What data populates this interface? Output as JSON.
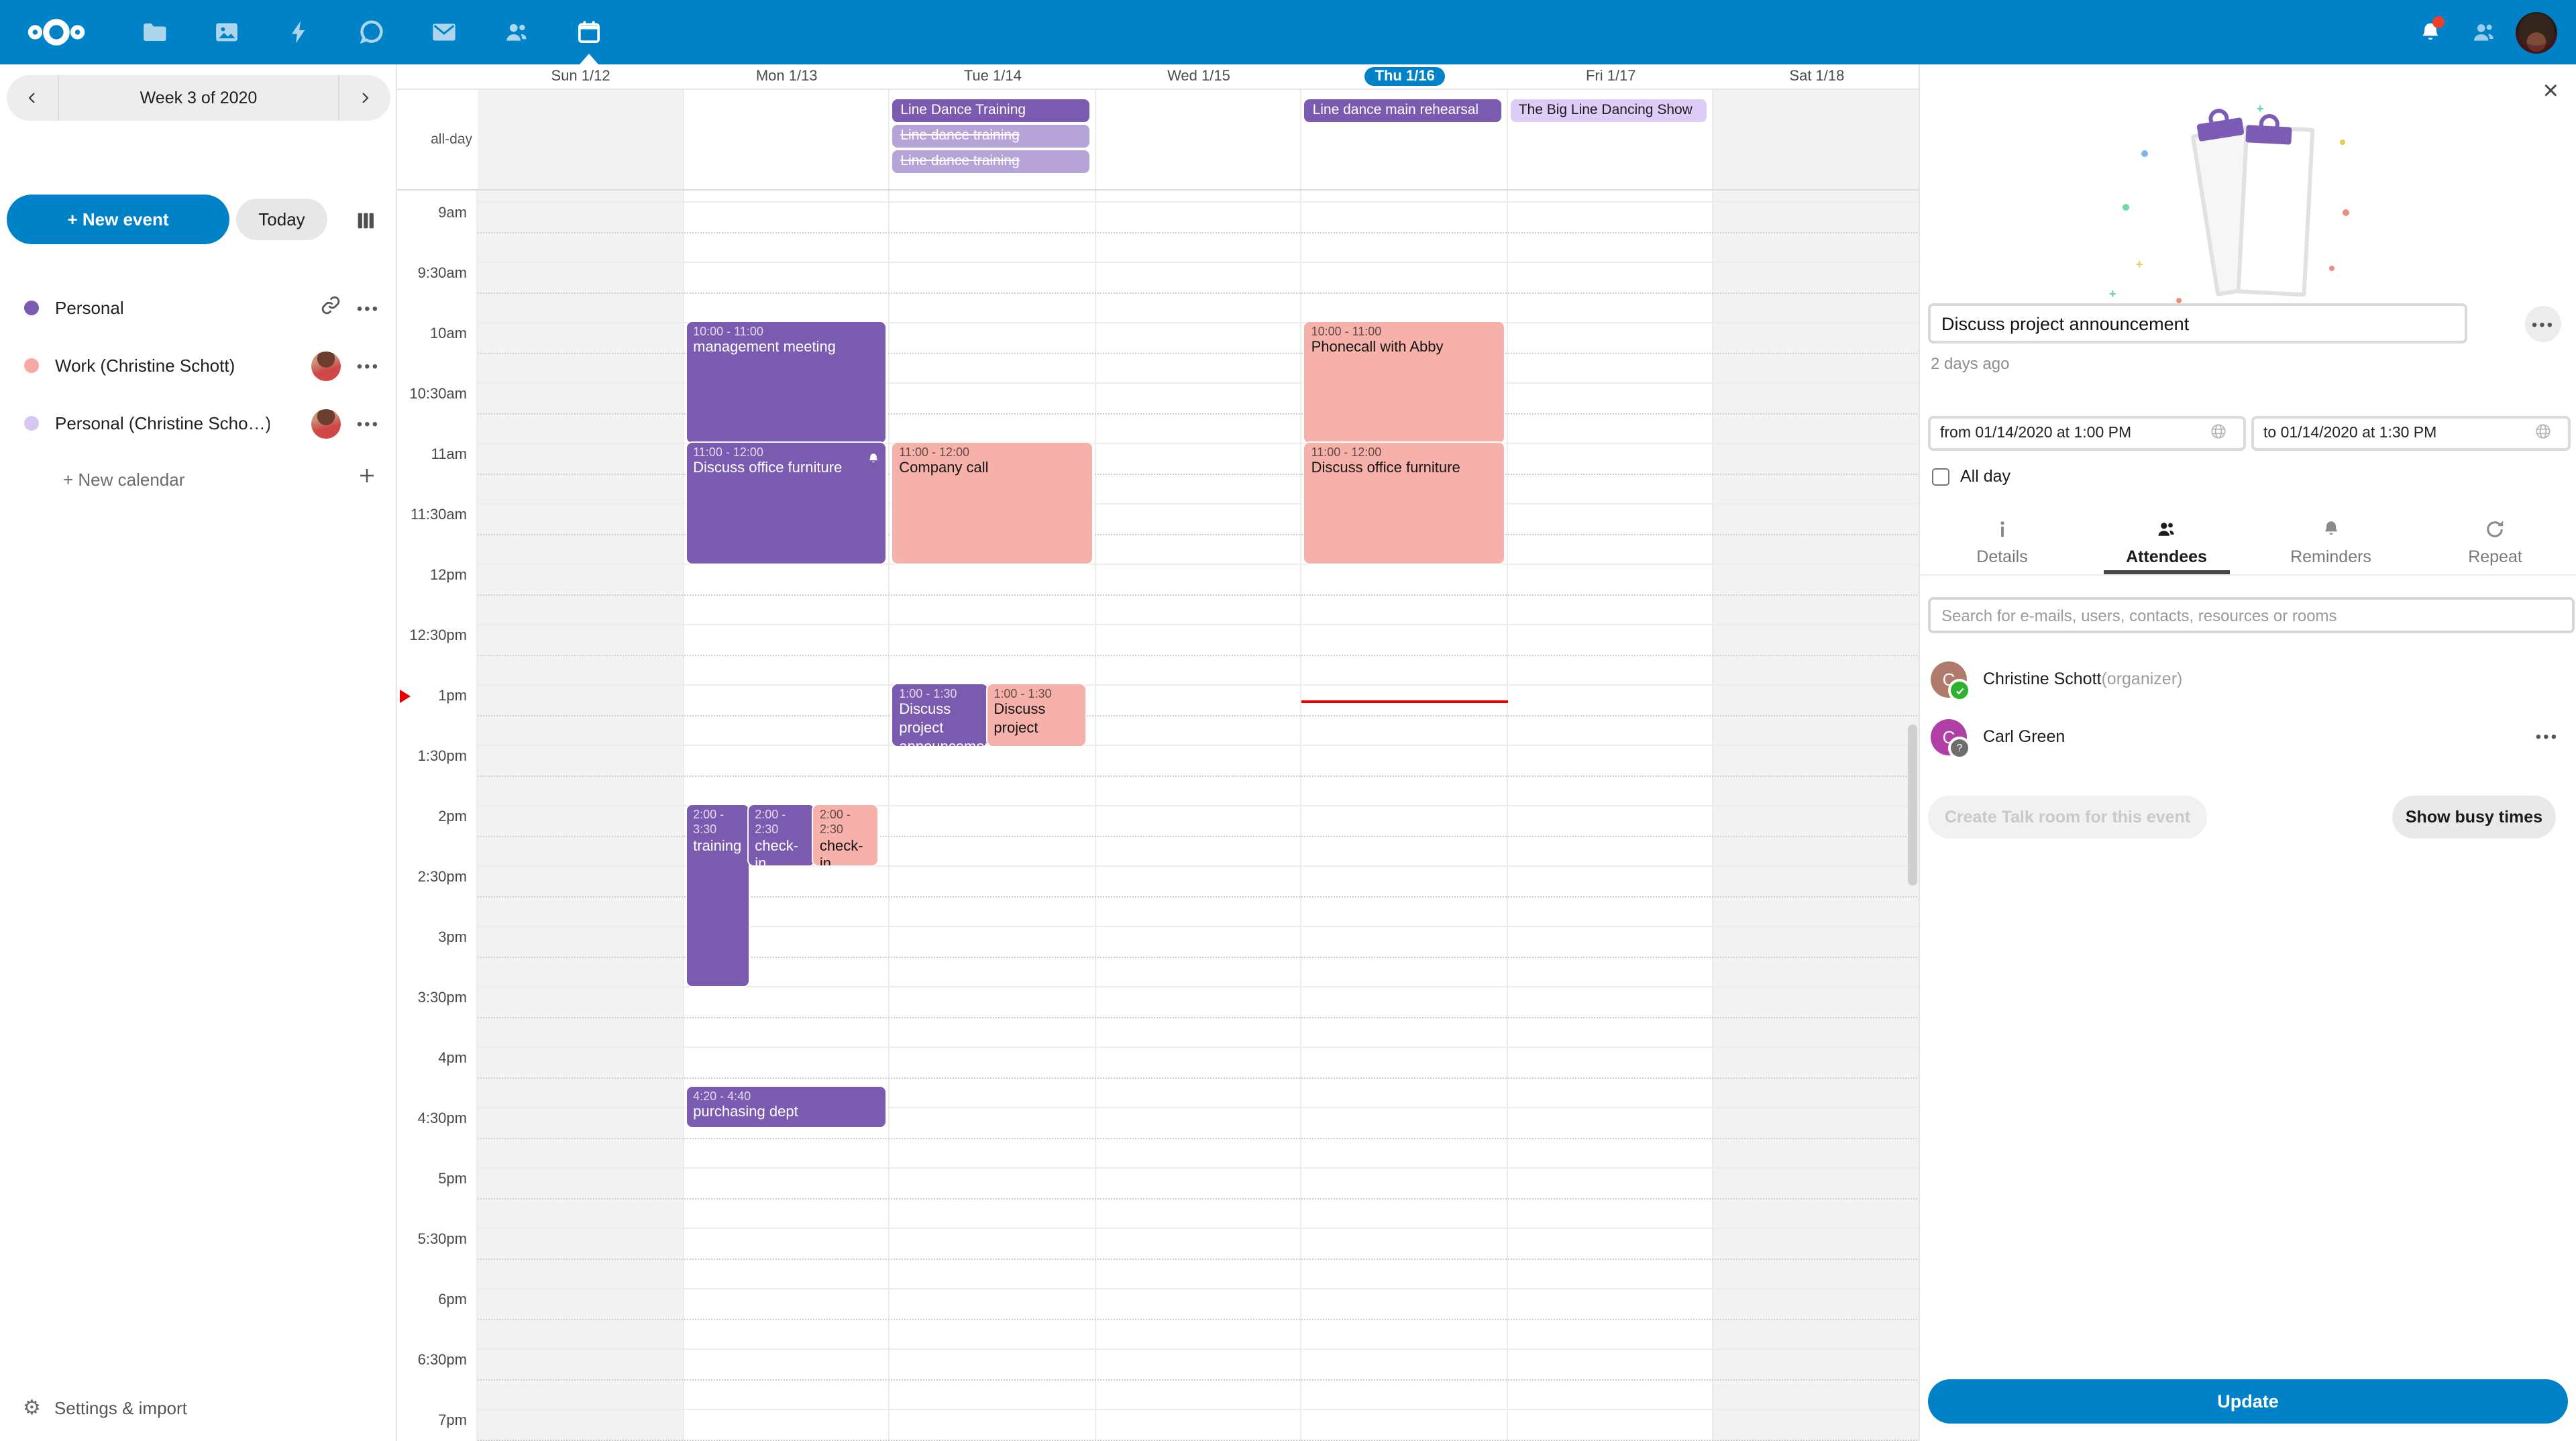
{
  "colors": {
    "accent": "#0082c9",
    "purple": "#7a5bb0",
    "pink": "#f7b1ab",
    "cancelled": "#b6a4d9",
    "lavender": "#dcccf6",
    "red": "#e60000"
  },
  "header": {
    "app_icons": [
      "files",
      "photos",
      "activity",
      "talk",
      "mail",
      "contacts",
      "calendar"
    ],
    "active_app": "calendar",
    "notification_badge": true
  },
  "sidebar": {
    "week_label": "Week 3 of 2020",
    "new_event_label": "+ New event",
    "today_label": "Today",
    "calendars": [
      {
        "name": "Personal",
        "color": "#7a5bb0",
        "link": true,
        "menu": true,
        "avatar": false
      },
      {
        "name": "Work (Christine Schott)",
        "color": "#f5a9a2",
        "link": false,
        "menu": true,
        "avatar": true
      },
      {
        "name": "Personal (Christine Scho…)",
        "color": "#d7c6f3",
        "link": false,
        "menu": true,
        "avatar": true
      }
    ],
    "new_calendar_label": "+ New calendar",
    "settings_label": "Settings & import"
  },
  "calendar": {
    "allday_label": "all-day",
    "days": [
      {
        "label": "Sun 1/12",
        "active": false,
        "weekend": true
      },
      {
        "label": "Mon 1/13",
        "active": false,
        "weekend": false
      },
      {
        "label": "Tue 1/14",
        "active": false,
        "weekend": false
      },
      {
        "label": "Wed 1/15",
        "active": false,
        "weekend": false
      },
      {
        "label": "Thu 1/16",
        "active": true,
        "weekend": false
      },
      {
        "label": "Fri 1/17",
        "active": false,
        "weekend": false
      },
      {
        "label": "Sat 1/18",
        "active": false,
        "weekend": true
      }
    ],
    "time_labels": [
      "9am",
      "9:30am",
      "10am",
      "10:30am",
      "11am",
      "11:30am",
      "12pm",
      "12:30pm",
      "1pm",
      "1:30pm",
      "2pm",
      "2:30pm",
      "3pm",
      "3:30pm",
      "4pm",
      "4:30pm",
      "5pm",
      "5:30pm",
      "6pm",
      "6:30pm",
      "7pm"
    ],
    "now": {
      "day": 4,
      "time": "13:08",
      "marker_label": "1pm"
    },
    "allday_events": [
      {
        "day": 2,
        "title": "Line Dance Training",
        "variant": "purple"
      },
      {
        "day": 2,
        "title": "Line dance training",
        "variant": "cancelled"
      },
      {
        "day": 2,
        "title": "Line dance training",
        "variant": "cancelled"
      },
      {
        "day": 4,
        "title": "Line dance main rehearsal",
        "variant": "purple"
      },
      {
        "day": 5,
        "title": "The Big Line Dancing Show",
        "variant": "lavender"
      }
    ],
    "events": [
      {
        "day": 1,
        "start": "10:00",
        "end": "11:00",
        "time_label": "10:00 - 11:00",
        "title": "management meeting",
        "variant": "purple"
      },
      {
        "day": 1,
        "start": "11:00",
        "end": "12:00",
        "time_label": "11:00 - 12:00",
        "title": "Discuss office furniture",
        "variant": "purple",
        "reminder": true
      },
      {
        "day": 1,
        "start": "14:00",
        "end": "15:30",
        "time_label": "2:00 - 3:30",
        "title": "training",
        "variant": "purple",
        "lane": {
          "l": 0,
          "w": 0.315
        }
      },
      {
        "day": 1,
        "start": "14:00",
        "end": "14:30",
        "time_label": "2:00 - 2:30",
        "title": "check-in",
        "variant": "purple",
        "lane": {
          "l": 0.31,
          "w": 0.335
        }
      },
      {
        "day": 1,
        "start": "14:00",
        "end": "14:30",
        "time_label": "2:00 - 2:30",
        "title": "check-in",
        "variant": "pink",
        "lane": {
          "l": 0.635,
          "w": 0.325
        }
      },
      {
        "day": 1,
        "start": "16:20",
        "end": "16:40",
        "time_label": "4:20 - 4:40",
        "title": "purchasing dept",
        "variant": "purple"
      },
      {
        "day": 2,
        "start": "11:00",
        "end": "12:00",
        "time_label": "11:00 - 12:00",
        "title": "Company call",
        "variant": "pink"
      },
      {
        "day": 2,
        "start": "13:00",
        "end": "13:30",
        "time_label": "1:00 - 1:30",
        "title": "Discuss project announcement",
        "variant": "purple",
        "lane": {
          "l": 0,
          "w": 0.475
        },
        "min_h": 46
      },
      {
        "day": 2,
        "start": "13:00",
        "end": "13:30",
        "time_label": "1:00 - 1:30",
        "title": "Discuss project",
        "variant": "pink",
        "lane": {
          "l": 0.475,
          "w": 0.49
        },
        "min_h": 46
      },
      {
        "day": 4,
        "start": "10:00",
        "end": "11:00",
        "time_label": "10:00 - 11:00",
        "title": "Phonecall with Abby",
        "variant": "pink"
      },
      {
        "day": 4,
        "start": "11:00",
        "end": "12:00",
        "time_label": "11:00 - 12:00",
        "title": "Discuss office furniture",
        "variant": "pink"
      }
    ]
  },
  "panel": {
    "title_value": "Discuss project announcement",
    "modified": "2 days ago",
    "from_value": "from 01/14/2020 at 1:00 PM",
    "to_value": "to 01/14/2020 at 1:30 PM",
    "allday_label": "All day",
    "tabs": [
      {
        "label": "Details",
        "icon": "info",
        "active": false
      },
      {
        "label": "Attendees",
        "icon": "people",
        "active": true
      },
      {
        "label": "Reminders",
        "icon": "bell",
        "active": false
      },
      {
        "label": "Repeat",
        "icon": "repeat",
        "active": false
      }
    ],
    "search_placeholder": "Search for e-mails, users, contacts, resources or rooms",
    "attendees": [
      {
        "initial": "C",
        "name": "Christine Schott",
        "suffix": "(organizer)",
        "color": "#b07a6c",
        "badge": "accepted",
        "menu": false
      },
      {
        "initial": "C",
        "name": "Carl Green",
        "suffix": "",
        "color": "#b13fa5",
        "badge": "pending",
        "menu": true
      }
    ],
    "create_talk_label": "Create Talk room for this event",
    "show_busy_label": "Show busy times",
    "update_label": "Update"
  }
}
